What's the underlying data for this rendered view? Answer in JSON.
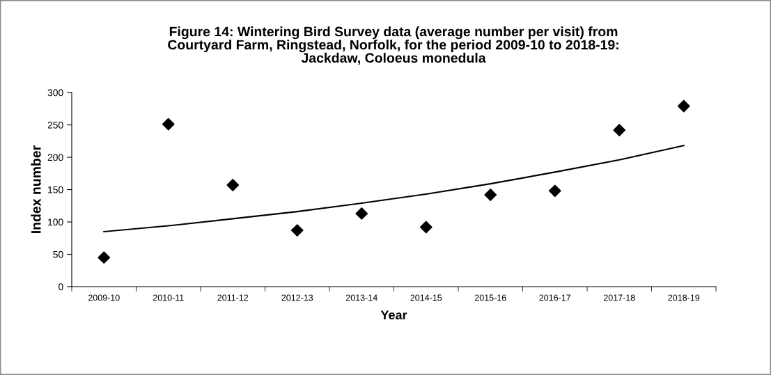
{
  "chart_data": {
    "type": "scatter",
    "title": "Figure 14: Wintering Bird Survey data (average number per visit) from\nCourtyard Farm, Ringstead, Norfolk, for the period 2009-10 to 2018-19:\nJackdaw, Coloeus monedula",
    "xlabel": "Year",
    "ylabel": "Index number",
    "categories": [
      "2009-10",
      "2010-11",
      "2011-12",
      "2012-13",
      "2013-14",
      "2014-15",
      "2015-16",
      "2016-17",
      "2017-18",
      "2018-19"
    ],
    "series": [
      {
        "color": "#000000",
        "marker": "diamond",
        "values": [
          45,
          251,
          157,
          87,
          113,
          92,
          142,
          148,
          242,
          279
        ]
      },
      {
        "type": "line",
        "color": "#000000",
        "marker": "none",
        "line_style": "solid",
        "values": [
          85,
          94,
          105,
          116,
          129,
          143,
          159,
          177,
          196,
          218
        ]
      }
    ],
    "ylim": [
      0,
      300
    ],
    "yticks": [
      0,
      50,
      100,
      150,
      200,
      250,
      300
    ],
    "grid": false,
    "legend": false
  }
}
